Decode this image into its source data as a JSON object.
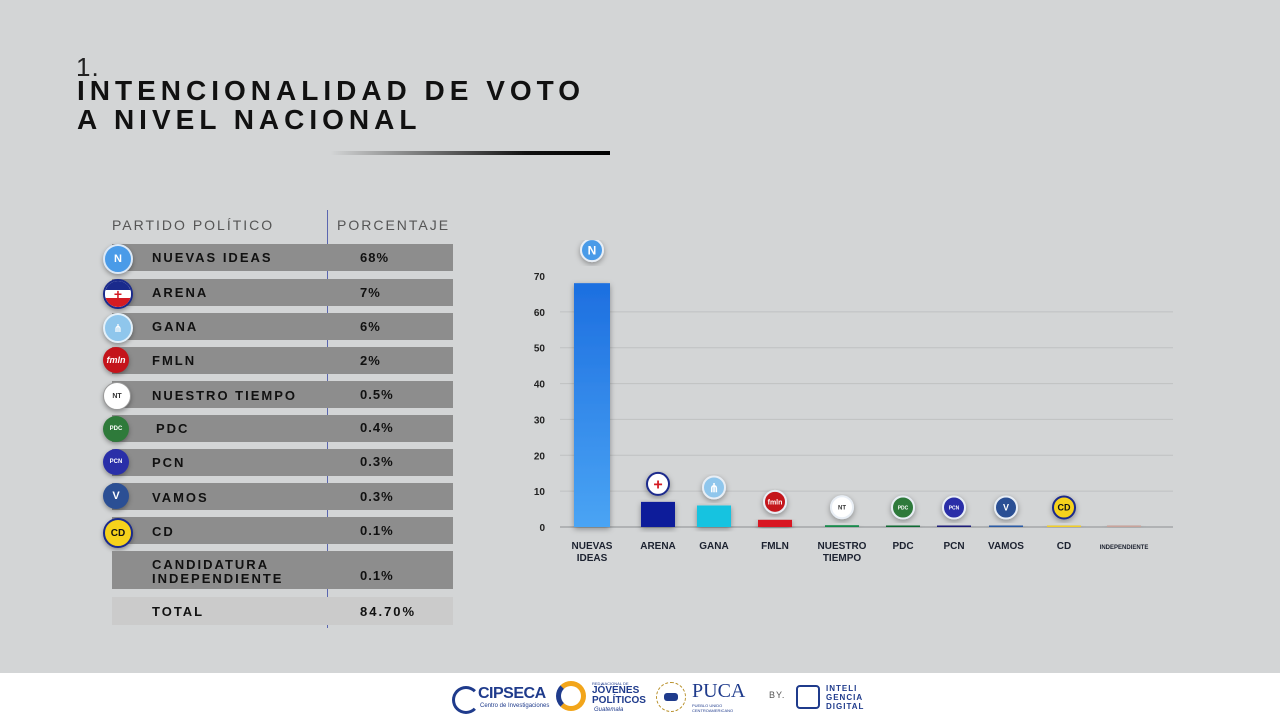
{
  "header": {
    "section_number": "1.",
    "title_line1": "INTENCIONALIDAD DE VOTO",
    "title_line2": "A NIVEL NACIONAL"
  },
  "table": {
    "col_party": "PARTIDO POLÍTICO",
    "col_percent": "PORCENTAJE",
    "rows": [
      {
        "name": "NUEVAS IDEAS",
        "percent": "68%",
        "logo": "N"
      },
      {
        "name": "ARENA",
        "percent": "7%",
        "logo": "+"
      },
      {
        "name": "GANA",
        "percent": "6%",
        "logo": "⋔"
      },
      {
        "name": "FMLN",
        "percent": "2%",
        "logo": "fmln"
      },
      {
        "name": "NUESTRO TIEMPO",
        "percent": "0.5%",
        "logo": "NT"
      },
      {
        "name": "PDC",
        "percent": "0.4%",
        "logo": "PDC"
      },
      {
        "name": "PCN",
        "percent": "0.3%",
        "logo": "PCN"
      },
      {
        "name": "VAMOS",
        "percent": "0.3%",
        "logo": "V"
      },
      {
        "name": "CD",
        "percent": "0.1%",
        "logo": "CD"
      },
      {
        "name_line1": "CANDIDATURA",
        "name_line2": "INDEPENDIENTE",
        "percent": "0.1%"
      }
    ],
    "total_label": "TOTAL",
    "total_value": "84.70%"
  },
  "chart_data": {
    "type": "bar",
    "categories": [
      "NUEVAS IDEAS",
      "ARENA",
      "GANA",
      "FMLN",
      "NUESTRO TIEMPO",
      "PDC",
      "PCN",
      "VAMOS",
      "CD",
      "INDEPENDIENTE"
    ],
    "values": [
      68,
      7,
      6,
      2,
      0.5,
      0.4,
      0.3,
      0.3,
      0.1,
      0.1
    ],
    "ylim": [
      0,
      70
    ],
    "yticks": [
      0,
      10,
      20,
      30,
      40,
      50,
      60,
      70
    ],
    "grid": true,
    "title": "",
    "xlabel": "",
    "ylabel": "",
    "colors": [
      "#2f86e8",
      "#0b1d9a",
      "#19c3e0",
      "#d81920",
      "#178a4b",
      "#0e6a32",
      "#1b1a7a",
      "#2a5aa6",
      "#f2cf2a",
      "#c9a39b"
    ]
  },
  "footer": {
    "logo1": "CIPSECA",
    "logo1_sub": "Centro de Investigaciones",
    "logo2_small": "RED NACIONAL DE",
    "logo2_a": "JÓVENES",
    "logo2_b": "POLÍTICOS",
    "logo2_c": "Guatemala",
    "logo3": "PUCA",
    "logo3_sub": "PUEBLO UNIDO CENTROAMERICANO",
    "by": "BY.",
    "logo4_a": "INTELI",
    "logo4_b": "GENCIA",
    "logo4_c": "DIGITAL"
  }
}
